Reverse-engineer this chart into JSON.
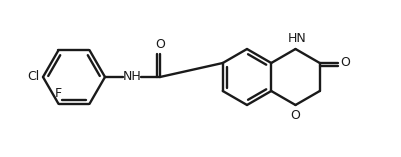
{
  "bg_color": "#ffffff",
  "bond_color": "#1a1a1a",
  "lw": 1.7,
  "fs": 9,
  "figsize": [
    4.02,
    1.57
  ],
  "dpi": 100,
  "xlim": [
    0,
    402
  ],
  "ylim": [
    0,
    157
  ]
}
